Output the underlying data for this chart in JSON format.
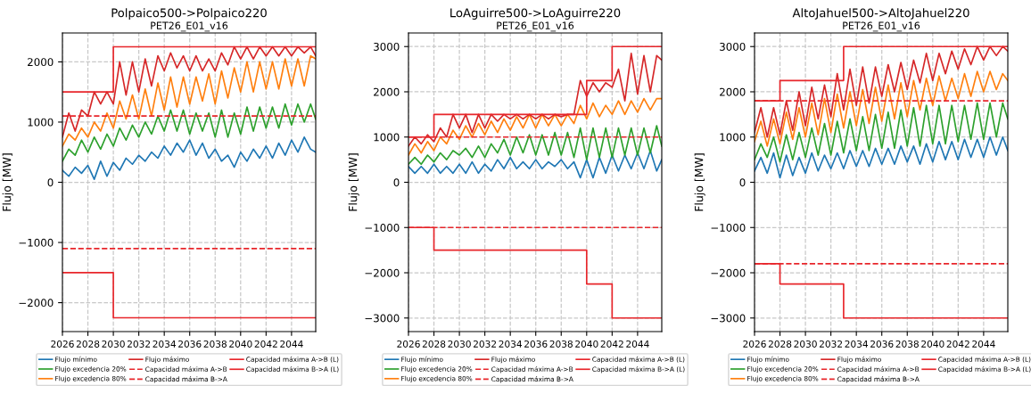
{
  "chart_data": [
    {
      "type": "line",
      "title": "Polpaico500->Polpaico220",
      "subtitle": "PET26_E01_v16",
      "ylabel": "Flujo [MW]",
      "xlim": [
        2026,
        2045.9
      ],
      "xticks": [
        2026,
        2028,
        2030,
        2032,
        2034,
        2036,
        2038,
        2040,
        2042,
        2044
      ],
      "ylim": [
        -2480,
        2480
      ],
      "yticks": [
        {
          "value": -2000,
          "label": "−2000"
        },
        {
          "value": -1000,
          "label": "−1000"
        },
        0,
        1000,
        2000
      ],
      "grid": true,
      "legend": "bottom",
      "x": [
        2026,
        2026.5,
        2027,
        2027.5,
        2028,
        2028.5,
        2029,
        2029.5,
        2030,
        2030.5,
        2031,
        2031.5,
        2032,
        2032.5,
        2033,
        2033.5,
        2034,
        2034.5,
        2035,
        2035.5,
        2036,
        2036.5,
        2037,
        2037.5,
        2038,
        2038.5,
        2039,
        2039.5,
        2040,
        2040.5,
        2041,
        2041.5,
        2042,
        2042.5,
        2043,
        2043.5,
        2044,
        2044.5,
        2045,
        2045.5,
        2045.9
      ],
      "series": [
        {
          "name": "Flujo mínimo",
          "color": "#1f77b4",
          "values": [
            200,
            100,
            250,
            150,
            280,
            50,
            350,
            100,
            330,
            200,
            400,
            300,
            450,
            350,
            500,
            400,
            600,
            450,
            650,
            500,
            700,
            450,
            650,
            400,
            550,
            350,
            450,
            250,
            500,
            350,
            550,
            400,
            600,
            400,
            650,
            450,
            700,
            500,
            750,
            550,
            500
          ]
        },
        {
          "name": "Flujo excedencia 20%",
          "color": "#2ca02c",
          "values": [
            350,
            550,
            450,
            700,
            500,
            750,
            550,
            800,
            600,
            900,
            700,
            950,
            750,
            1000,
            800,
            1100,
            850,
            1200,
            850,
            1200,
            800,
            1150,
            850,
            1150,
            750,
            1200,
            750,
            1150,
            800,
            1250,
            850,
            1250,
            900,
            1250,
            900,
            1300,
            950,
            1300,
            1000,
            1300,
            1050
          ]
        },
        {
          "name": "Flujo excedencia 80%",
          "color": "#ff7f0e",
          "values": [
            600,
            800,
            700,
            900,
            750,
            1000,
            850,
            1150,
            900,
            1350,
            1050,
            1450,
            1050,
            1550,
            1100,
            1650,
            1200,
            1750,
            1250,
            1750,
            1300,
            1750,
            1350,
            1800,
            1300,
            1850,
            1400,
            1900,
            1500,
            2000,
            1500,
            2000,
            1550,
            2000,
            1550,
            2050,
            1600,
            2050,
            1600,
            2100,
            2050
          ]
        },
        {
          "name": "Flujo máximo",
          "color": "#d62728",
          "values": [
            750,
            1150,
            850,
            1200,
            1100,
            1500,
            1300,
            1500,
            1300,
            2000,
            1450,
            2000,
            1500,
            2050,
            1600,
            2100,
            1850,
            2150,
            1900,
            2100,
            1850,
            2100,
            1850,
            2050,
            1850,
            2150,
            1950,
            2250,
            2050,
            2250,
            2050,
            2250,
            2100,
            2250,
            2100,
            2250,
            2100,
            2250,
            2150,
            2250,
            2100
          ]
        },
        {
          "name": "Capacidad máxima A->B",
          "color": "#e8262b",
          "line_style": "dashed",
          "x": [
            2026,
            2045.9
          ],
          "values": [
            1100,
            1100
          ]
        },
        {
          "name": "Capacidad máxima B->A",
          "color": "#e8262b",
          "line_style": "dashed",
          "x": [
            2026,
            2045.9
          ],
          "values": [
            -1100,
            -1100
          ]
        },
        {
          "name": "Capacidad máxima A->B (L)",
          "color": "#e8262b",
          "type": "step",
          "x": [
            2026,
            2030,
            2045.9
          ],
          "values": [
            1500,
            2250,
            2250
          ]
        },
        {
          "name": "Capacidad máxima B->A (L)",
          "color": "#e8262b",
          "type": "step",
          "x": [
            2026,
            2030,
            2045.9
          ],
          "values": [
            -1500,
            -2250,
            -2250
          ]
        }
      ]
    },
    {
      "type": "line",
      "title": "LoAguirre500->LoAguirre220",
      "subtitle": "PET26_E01_v16",
      "ylabel": "Flujo [MW]",
      "xlim": [
        2026,
        2045.9
      ],
      "xticks": [
        2026,
        2028,
        2030,
        2032,
        2034,
        2036,
        2038,
        2040,
        2042,
        2044
      ],
      "ylim": [
        -3300,
        3300
      ],
      "yticks": [
        {
          "value": -3000,
          "label": "−3000"
        },
        {
          "value": -2000,
          "label": "−2000"
        },
        {
          "value": -1000,
          "label": "−1000"
        },
        0,
        1000,
        2000,
        3000
      ],
      "grid": true,
      "legend": "bottom",
      "x": [
        2026,
        2026.5,
        2027,
        2027.5,
        2028,
        2028.5,
        2029,
        2029.5,
        2030,
        2030.5,
        2031,
        2031.5,
        2032,
        2032.5,
        2033,
        2033.5,
        2034,
        2034.5,
        2035,
        2035.5,
        2036,
        2036.5,
        2037,
        2037.5,
        2038,
        2038.5,
        2039,
        2039.5,
        2040,
        2040.5,
        2041,
        2041.5,
        2042,
        2042.5,
        2043,
        2043.5,
        2044,
        2044.5,
        2045,
        2045.5,
        2045.9
      ],
      "series": [
        {
          "name": "Flujo mínimo",
          "color": "#1f77b4",
          "values": [
            350,
            200,
            350,
            200,
            400,
            200,
            350,
            200,
            400,
            200,
            450,
            200,
            400,
            250,
            500,
            300,
            550,
            300,
            450,
            300,
            500,
            300,
            450,
            350,
            500,
            300,
            450,
            100,
            500,
            100,
            550,
            200,
            600,
            250,
            600,
            300,
            650,
            300,
            700,
            250,
            500
          ]
        },
        {
          "name": "Flujo excedencia 20%",
          "color": "#2ca02c",
          "values": [
            400,
            550,
            400,
            600,
            450,
            650,
            500,
            700,
            600,
            750,
            550,
            800,
            550,
            850,
            650,
            950,
            600,
            1000,
            650,
            1050,
            600,
            1050,
            600,
            1100,
            600,
            1100,
            550,
            1200,
            500,
            1200,
            550,
            1200,
            550,
            1200,
            600,
            1200,
            600,
            1200,
            650,
            1250,
            800
          ]
        },
        {
          "name": "Flujo excedencia 80%",
          "color": "#ff7f0e",
          "values": [
            600,
            850,
            650,
            900,
            700,
            1000,
            850,
            1150,
            950,
            1250,
            1000,
            1300,
            1050,
            1350,
            1100,
            1400,
            1150,
            1450,
            1200,
            1500,
            1200,
            1500,
            1250,
            1500,
            1250,
            1500,
            1300,
            1700,
            1400,
            1750,
            1450,
            1700,
            1500,
            1800,
            1500,
            1800,
            1550,
            1850,
            1600,
            1850,
            1850
          ]
        },
        {
          "name": "Flujo máximo",
          "color": "#d62728",
          "values": [
            800,
            1000,
            850,
            1050,
            900,
            1200,
            1000,
            1500,
            1200,
            1500,
            1100,
            1500,
            1200,
            1500,
            1350,
            1500,
            1400,
            1500,
            1400,
            1500,
            1400,
            1500,
            1400,
            1500,
            1450,
            1500,
            1500,
            2250,
            1900,
            2200,
            2000,
            2200,
            2100,
            2500,
            1800,
            2850,
            1950,
            2800,
            2000,
            2800,
            2700
          ]
        },
        {
          "name": "Capacidad máxima A->B",
          "color": "#e8262b",
          "line_style": "dashed",
          "x": [
            2026,
            2045.9
          ],
          "values": [
            1000,
            1000
          ]
        },
        {
          "name": "Capacidad máxima B->A",
          "color": "#e8262b",
          "line_style": "dashed",
          "x": [
            2026,
            2045.9
          ],
          "values": [
            -1000,
            -1000
          ]
        },
        {
          "name": "Capacidad máxima A->B (L)",
          "color": "#e8262b",
          "type": "step",
          "x": [
            2026,
            2028,
            2040,
            2042,
            2045.9
          ],
          "values": [
            1000,
            1500,
            2250,
            3000,
            3000
          ]
        },
        {
          "name": "Capacidad máxima B->A (L)",
          "color": "#e8262b",
          "type": "step",
          "x": [
            2026,
            2028,
            2040,
            2042,
            2045.9
          ],
          "values": [
            -1000,
            -1500,
            -2250,
            -3000,
            -3000
          ]
        }
      ]
    },
    {
      "type": "line",
      "title": "AltoJahuel500->AltoJahuel220",
      "subtitle": "PET26_E01_v16",
      "ylabel": "Flujo [MW]",
      "xlim": [
        2026,
        2045.9
      ],
      "xticks": [
        2026,
        2028,
        2030,
        2032,
        2034,
        2036,
        2038,
        2040,
        2042,
        2044
      ],
      "ylim": [
        -3300,
        3300
      ],
      "yticks": [
        {
          "value": -3000,
          "label": "−3000"
        },
        {
          "value": -2000,
          "label": "−2000"
        },
        {
          "value": -1000,
          "label": "−1000"
        },
        0,
        1000,
        2000,
        3000
      ],
      "grid": true,
      "legend": "bottom",
      "x": [
        2026,
        2026.5,
        2027,
        2027.5,
        2028,
        2028.5,
        2029,
        2029.5,
        2030,
        2030.5,
        2031,
        2031.5,
        2032,
        2032.5,
        2033,
        2033.5,
        2034,
        2034.5,
        2035,
        2035.5,
        2036,
        2036.5,
        2037,
        2037.5,
        2038,
        2038.5,
        2039,
        2039.5,
        2040,
        2040.5,
        2041,
        2041.5,
        2042,
        2042.5,
        2043,
        2043.5,
        2044,
        2044.5,
        2045,
        2045.5,
        2045.9
      ],
      "series": [
        {
          "name": "Flujo mínimo",
          "color": "#1f77b4",
          "values": [
            250,
            550,
            200,
            650,
            100,
            600,
            150,
            550,
            200,
            650,
            250,
            600,
            300,
            650,
            300,
            700,
            350,
            700,
            350,
            750,
            400,
            750,
            400,
            800,
            450,
            800,
            400,
            850,
            450,
            900,
            500,
            900,
            500,
            950,
            550,
            950,
            550,
            1000,
            600,
            1000,
            700
          ]
        },
        {
          "name": "Flujo excedencia 20%",
          "color": "#2ca02c",
          "values": [
            500,
            850,
            550,
            1000,
            450,
            1050,
            500,
            1100,
            550,
            1200,
            600,
            1300,
            600,
            1350,
            650,
            1400,
            700,
            1450,
            700,
            1500,
            750,
            1550,
            750,
            1600,
            800,
            1650,
            800,
            1700,
            850,
            1700,
            850,
            1700,
            900,
            1700,
            950,
            1750,
            950,
            1750,
            1000,
            1750,
            1400
          ]
        },
        {
          "name": "Flujo excedencia 80%",
          "color": "#ff7f0e",
          "values": [
            900,
            1350,
            800,
            1400,
            850,
            1550,
            950,
            1650,
            1000,
            1750,
            1050,
            1850,
            1100,
            1950,
            1200,
            2000,
            1250,
            2050,
            1300,
            2100,
            1350,
            2150,
            1400,
            2200,
            1450,
            2250,
            1600,
            2300,
            1700,
            2350,
            1800,
            2300,
            1850,
            2400,
            1900,
            2450,
            2000,
            2450,
            2050,
            2400,
            2250
          ]
        },
        {
          "name": "Flujo máximo",
          "color": "#d62728",
          "values": [
            1100,
            1650,
            1000,
            1650,
            1050,
            1800,
            1150,
            2000,
            1250,
            2100,
            1400,
            2150,
            1450,
            2400,
            1600,
            2500,
            1700,
            2550,
            1750,
            2550,
            1900,
            2600,
            2000,
            2650,
            2050,
            2700,
            2200,
            2850,
            2250,
            2850,
            2400,
            2900,
            2500,
            2950,
            2600,
            3000,
            2700,
            3000,
            2800,
            3000,
            2900
          ]
        },
        {
          "name": "Capacidad máxima A->B",
          "color": "#e8262b",
          "line_style": "dashed",
          "x": [
            2026,
            2045.9
          ],
          "values": [
            1800,
            1800
          ]
        },
        {
          "name": "Capacidad máxima B->A",
          "color": "#e8262b",
          "line_style": "dashed",
          "x": [
            2026,
            2045.9
          ],
          "values": [
            -1800,
            -1800
          ]
        },
        {
          "name": "Capacidad máxima A->B (L)",
          "color": "#e8262b",
          "type": "step",
          "x": [
            2026,
            2028,
            2033,
            2045.9
          ],
          "values": [
            1800,
            2250,
            3000,
            3000
          ]
        },
        {
          "name": "Capacidad máxima B->A (L)",
          "color": "#e8262b",
          "type": "step",
          "x": [
            2026,
            2028,
            2033,
            2045.9
          ],
          "values": [
            -1800,
            -2250,
            -3000,
            -3000
          ]
        }
      ]
    }
  ]
}
